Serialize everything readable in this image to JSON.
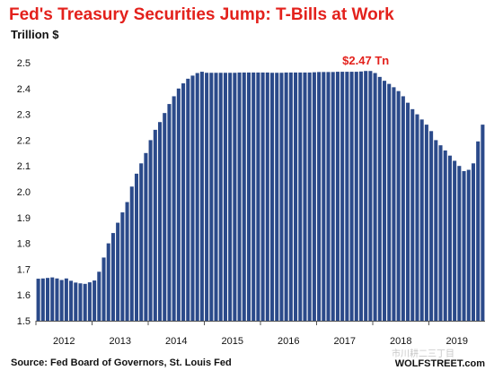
{
  "colors": {
    "bar": "#2b4a8a",
    "title": "#e3211c",
    "callout": "#e3211c",
    "text": "#111111",
    "grid": "#d0d0d0"
  },
  "chart_data": {
    "type": "bar",
    "title": "Fed's Treasury Securities Jump: T-Bills at Work",
    "ylabel": "Trillion $",
    "ylim": [
      1.5,
      2.5
    ],
    "yticks": [
      "1.5",
      "1.6",
      "1.7",
      "1.8",
      "1.9",
      "2.0",
      "2.1",
      "2.2",
      "2.3",
      "2.4",
      "2.5"
    ],
    "xticks": [
      "2012",
      "2013",
      "2014",
      "2015",
      "2016",
      "2017",
      "2018",
      "2019"
    ],
    "grid": false,
    "annotation": "$2.47 Tn",
    "source": "Source: Fed Board of Governors, St. Louis Fed",
    "credit": "WOLFSTREET.com",
    "watermark": "市川耕二三丁目",
    "x_start": "2012-01",
    "frequency": "monthly",
    "values": [
      1.663,
      1.664,
      1.666,
      1.668,
      1.664,
      1.658,
      1.664,
      1.655,
      1.648,
      1.645,
      1.643,
      1.649,
      1.656,
      1.69,
      1.745,
      1.8,
      1.84,
      1.88,
      1.92,
      1.96,
      2.02,
      2.07,
      2.11,
      2.15,
      2.2,
      2.24,
      2.27,
      2.305,
      2.34,
      2.37,
      2.4,
      2.42,
      2.438,
      2.45,
      2.46,
      2.465,
      2.461,
      2.461,
      2.461,
      2.461,
      2.461,
      2.461,
      2.461,
      2.462,
      2.462,
      2.462,
      2.462,
      2.462,
      2.462,
      2.462,
      2.461,
      2.461,
      2.461,
      2.462,
      2.462,
      2.462,
      2.462,
      2.462,
      2.462,
      2.463,
      2.464,
      2.464,
      2.464,
      2.464,
      2.465,
      2.465,
      2.465,
      2.465,
      2.465,
      2.466,
      2.468,
      2.468,
      2.46,
      2.445,
      2.43,
      2.418,
      2.405,
      2.39,
      2.37,
      2.345,
      2.32,
      2.3,
      2.28,
      2.26,
      2.235,
      2.2,
      2.18,
      2.16,
      2.14,
      2.12,
      2.1,
      2.08,
      2.085,
      2.11,
      2.195,
      2.26
    ]
  }
}
